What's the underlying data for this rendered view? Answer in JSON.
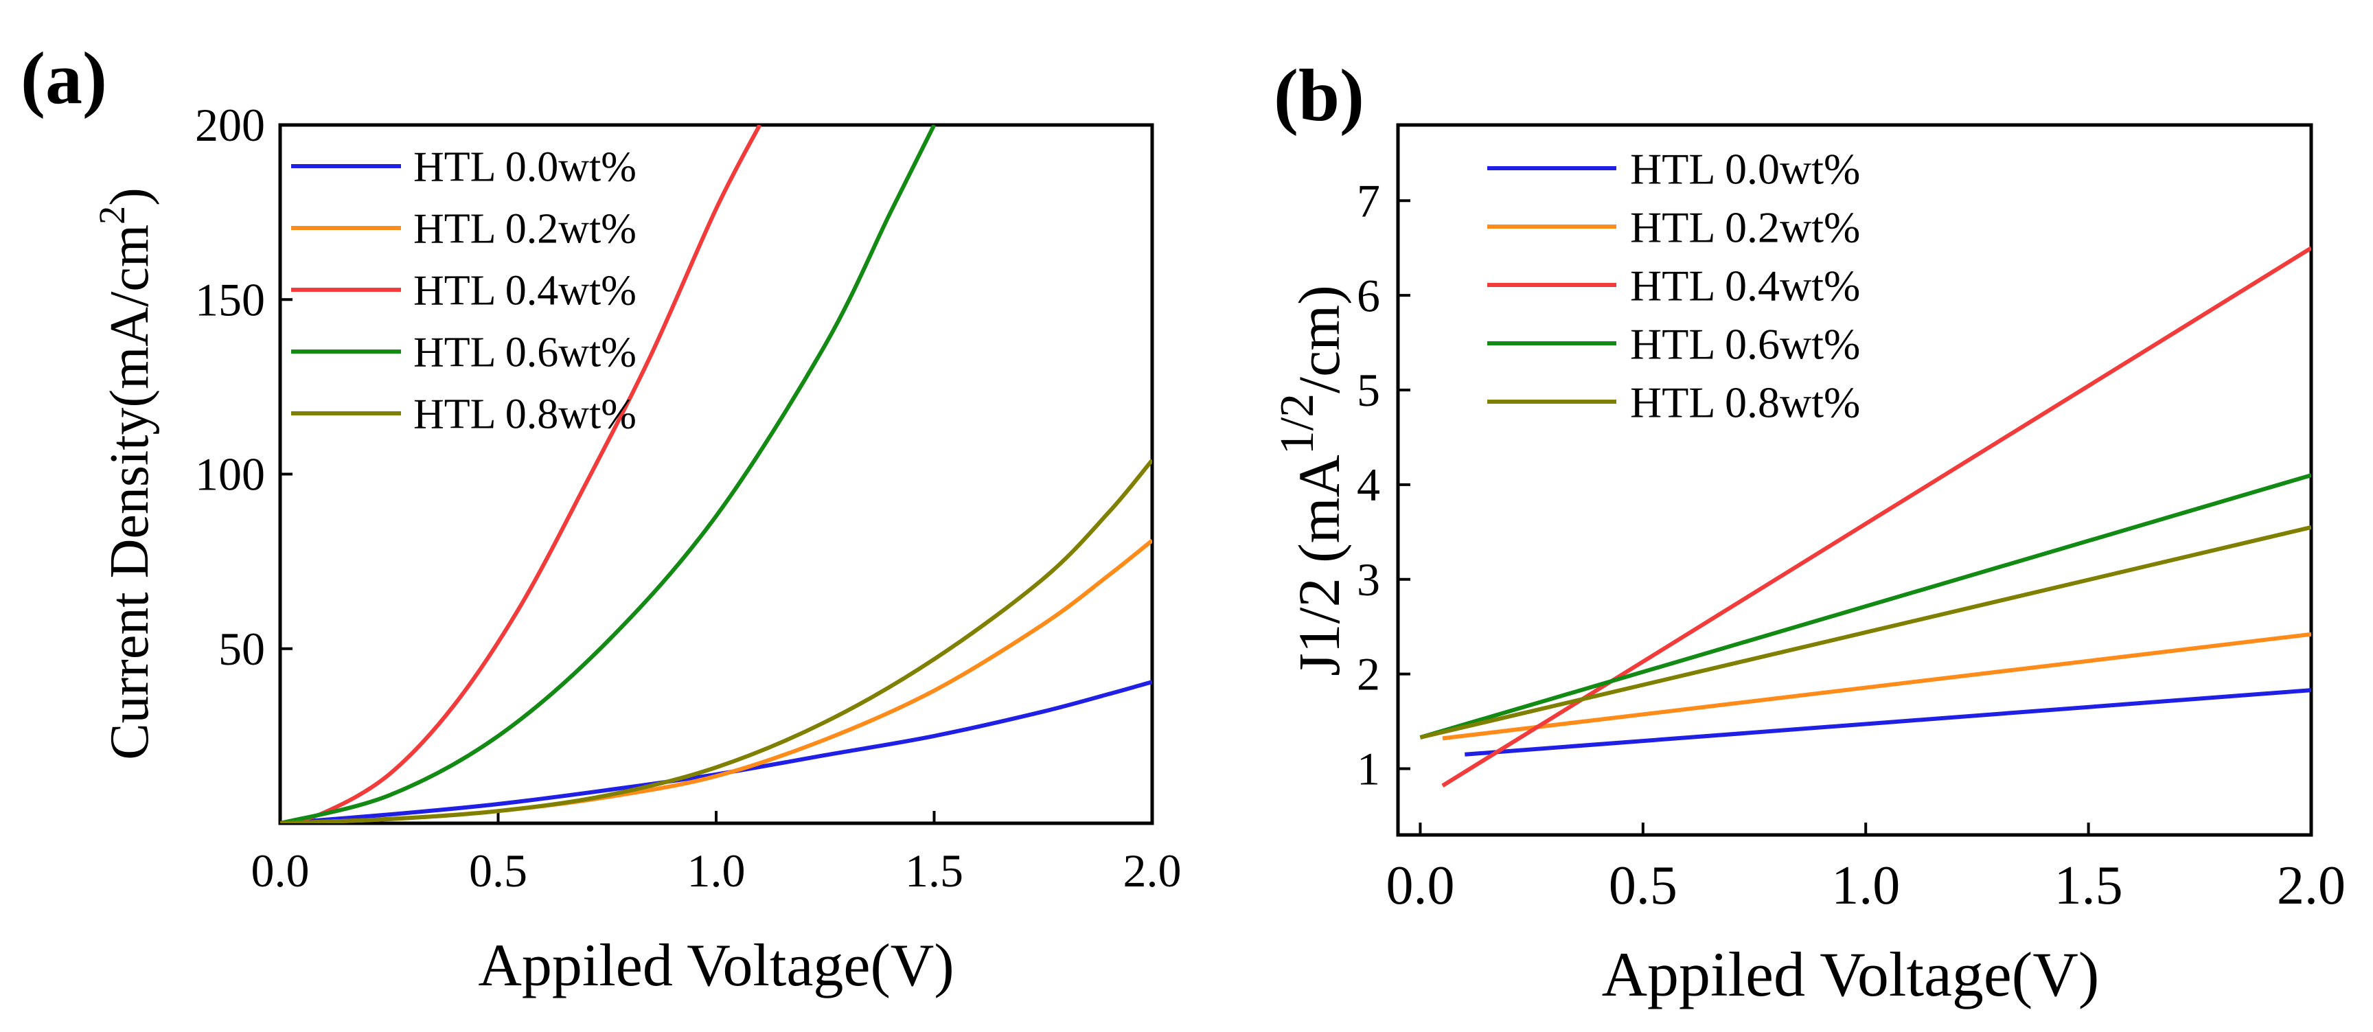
{
  "chart_data": [
    {
      "panel_label": "(a)",
      "type": "line",
      "xlabel": "Appiled Voltage(V)",
      "ylabel_main": "Current Density(mA/cm",
      "ylabel_sup": "2",
      "ylabel_tail": ")",
      "xlim": [
        0,
        2
      ],
      "ylim": [
        0,
        200
      ],
      "xticks": [
        "0.0",
        "0.5",
        "1.0",
        "1.5",
        "2.0"
      ],
      "xtick_values": [
        0,
        0.5,
        1,
        1.5,
        2
      ],
      "yticks": [
        "50",
        "100",
        "150",
        "200"
      ],
      "ytick_values": [
        50,
        100,
        150,
        200
      ],
      "legend_position": "top-left",
      "series": [
        {
          "name": "HTL 0.0wt%",
          "color": "#1f1fe6",
          "x": [
            0,
            0.25,
            0.5,
            0.75,
            1.0,
            1.25,
            1.5,
            1.75,
            1.9,
            2.0
          ],
          "y": [
            0,
            2.5,
            5.5,
            9.5,
            14,
            19.5,
            25,
            32,
            37,
            40.5
          ]
        },
        {
          "name": "HTL 0.2wt%",
          "color": "#ff8c1a",
          "x": [
            0,
            0.25,
            0.5,
            0.75,
            1.0,
            1.25,
            1.5,
            1.75,
            1.9,
            2.0
          ],
          "y": [
            0,
            1.2,
            3.5,
            7.5,
            13.5,
            24,
            38,
            57,
            71,
            81
          ]
        },
        {
          "name": "HTL 0.4wt%",
          "color": "#f23c3c",
          "x": [
            0,
            0.1,
            0.25,
            0.4,
            0.55,
            0.7,
            0.85,
            1.0,
            1.1
          ],
          "y": [
            0,
            3,
            14,
            34,
            62,
            97,
            134,
            176,
            200
          ]
        },
        {
          "name": "HTL 0.6wt%",
          "color": "#138a13",
          "x": [
            0,
            0.25,
            0.5,
            0.75,
            1.0,
            1.25,
            1.4,
            1.5
          ],
          "y": [
            0,
            8,
            25,
            52,
            88,
            137,
            175,
            200
          ]
        },
        {
          "name": "HTL 0.8wt%",
          "color": "#808000",
          "x": [
            0,
            0.25,
            0.5,
            0.75,
            1.0,
            1.25,
            1.5,
            1.75,
            1.9,
            2.0
          ],
          "y": [
            0,
            1.2,
            3.5,
            8,
            16,
            29,
            47,
            70,
            89,
            104
          ]
        }
      ]
    },
    {
      "panel_label": "(b)",
      "type": "line",
      "xlabel": "Appiled Voltage(V)",
      "ylabel_main": "J1/2 (mA",
      "ylabel_sup": "1/2",
      "ylabel_tail": "/cm)",
      "xlim": [
        -0.05,
        2
      ],
      "ylim": [
        0.3,
        7.8
      ],
      "xticks": [
        "0.0",
        "0.5",
        "1.0",
        "1.5",
        "2.0"
      ],
      "xtick_values": [
        0,
        0.5,
        1,
        1.5,
        2
      ],
      "yticks": [
        "1",
        "2",
        "3",
        "4",
        "5",
        "6",
        "7"
      ],
      "ytick_values": [
        1,
        2,
        3,
        4,
        5,
        6,
        7
      ],
      "legend_position": "top-left",
      "series": [
        {
          "name": "HTL 0.0wt%",
          "color": "#1f1fe6",
          "x": [
            0.1,
            2.0
          ],
          "y": [
            1.15,
            1.83
          ]
        },
        {
          "name": "HTL 0.2wt%",
          "color": "#ff8c1a",
          "x": [
            0.05,
            2.0
          ],
          "y": [
            1.32,
            2.42
          ]
        },
        {
          "name": "HTL 0.4wt%",
          "color": "#f23c3c",
          "x": [
            0.05,
            2.0
          ],
          "y": [
            0.82,
            6.5
          ]
        },
        {
          "name": "HTL 0.6wt%",
          "color": "#138a13",
          "x": [
            0.0,
            2.0
          ],
          "y": [
            1.33,
            4.1
          ]
        },
        {
          "name": "HTL 0.8wt%",
          "color": "#808000",
          "x": [
            0.0,
            2.0
          ],
          "y": [
            1.33,
            3.55
          ]
        }
      ]
    }
  ]
}
